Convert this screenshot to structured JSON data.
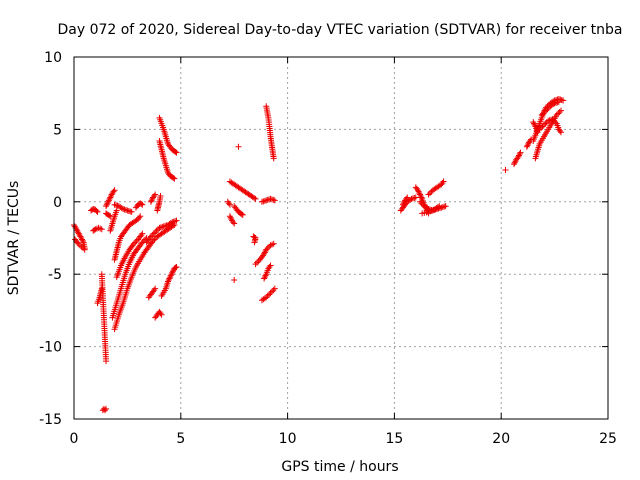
{
  "chart_data": {
    "type": "scatter",
    "title": "Day 072 of 2020, Sidereal Day-to-day VTEC variation (SDTVAR) for receiver tnba",
    "xlabel": "GPS time / hours",
    "ylabel": "SDTVAR / TECUs",
    "xlim": [
      0,
      25
    ],
    "ylim": [
      -15,
      10
    ],
    "xticks": [
      0,
      5,
      10,
      15,
      20,
      25
    ],
    "yticks": [
      -15,
      -10,
      -5,
      0,
      5,
      10
    ],
    "xtick_labels": [
      "0",
      "5",
      "10",
      "15",
      "20",
      "25"
    ],
    "ytick_labels": [
      "-15",
      "-10",
      "-5",
      "0",
      "5",
      "10"
    ],
    "grid": true,
    "marker": "plus",
    "color": "#ee0000",
    "series": [
      {
        "name": "SDTVAR",
        "segments": [
          [
            [
              0.0,
              -1.6
            ],
            [
              0.15,
              -2.0
            ],
            [
              0.3,
              -2.4
            ],
            [
              0.45,
              -2.8
            ],
            [
              0.5,
              -3.2
            ]
          ],
          [
            [
              0.05,
              -2.6
            ],
            [
              0.2,
              -2.9
            ],
            [
              0.35,
              -3.1
            ],
            [
              0.5,
              -3.3
            ]
          ],
          [
            [
              0.8,
              -0.6
            ],
            [
              0.9,
              -0.5
            ],
            [
              1.0,
              -0.55
            ],
            [
              1.1,
              -0.7
            ]
          ],
          [
            [
              0.9,
              -2.0
            ],
            [
              1.0,
              -1.9
            ],
            [
              1.15,
              -1.8
            ],
            [
              1.3,
              -1.9
            ]
          ],
          [
            [
              1.1,
              -7.0
            ],
            [
              1.2,
              -6.6
            ],
            [
              1.3,
              -6.0
            ]
          ],
          [
            [
              1.3,
              -5.0
            ],
            [
              1.35,
              -6.5
            ],
            [
              1.4,
              -8.0
            ],
            [
              1.45,
              -9.5
            ],
            [
              1.5,
              -11.0
            ]
          ],
          [
            [
              1.35,
              -14.4
            ],
            [
              1.4,
              -14.3
            ],
            [
              1.45,
              -14.4
            ],
            [
              1.5,
              -14.3
            ]
          ],
          [
            [
              1.5,
              -0.3
            ],
            [
              1.6,
              0.0
            ],
            [
              1.7,
              0.3
            ],
            [
              1.8,
              0.6
            ],
            [
              1.9,
              0.8
            ]
          ],
          [
            [
              1.5,
              -0.8
            ],
            [
              1.6,
              -0.9
            ],
            [
              1.7,
              -1.0
            ]
          ],
          [
            [
              1.7,
              -2.0
            ],
            [
              1.8,
              -1.5
            ],
            [
              1.9,
              -1.0
            ],
            [
              2.0,
              -0.6
            ]
          ],
          [
            [
              1.9,
              -0.2
            ],
            [
              2.1,
              -0.3
            ],
            [
              2.3,
              -0.5
            ],
            [
              2.5,
              -0.6
            ],
            [
              2.7,
              -0.7
            ]
          ],
          [
            [
              2.9,
              -0.4
            ],
            [
              3.0,
              -0.2
            ],
            [
              3.1,
              -0.1
            ],
            [
              3.2,
              -0.2
            ]
          ],
          [
            [
              1.9,
              -4.0
            ],
            [
              2.0,
              -3.4
            ],
            [
              2.1,
              -2.8
            ],
            [
              2.2,
              -2.4
            ],
            [
              2.4,
              -2.0
            ],
            [
              2.6,
              -1.6
            ],
            [
              2.8,
              -1.4
            ],
            [
              3.0,
              -1.2
            ],
            [
              3.1,
              -1.0
            ]
          ],
          [
            [
              1.9,
              -8.8
            ],
            [
              2.1,
              -7.8
            ],
            [
              2.3,
              -7.0
            ],
            [
              2.5,
              -6.0
            ],
            [
              2.7,
              -5.2
            ],
            [
              2.9,
              -4.5
            ],
            [
              3.1,
              -4.0
            ],
            [
              3.3,
              -3.5
            ],
            [
              3.5,
              -3.1
            ],
            [
              3.7,
              -2.7
            ],
            [
              3.9,
              -2.4
            ],
            [
              4.1,
              -2.2
            ],
            [
              4.3,
              -2.0
            ],
            [
              4.5,
              -1.8
            ],
            [
              4.7,
              -1.6
            ]
          ],
          [
            [
              1.8,
              -8.0
            ],
            [
              2.0,
              -7.0
            ],
            [
              2.2,
              -6.0
            ],
            [
              2.4,
              -5.0
            ],
            [
              2.6,
              -4.2
            ],
            [
              2.8,
              -3.6
            ],
            [
              3.0,
              -3.2
            ],
            [
              3.2,
              -2.8
            ],
            [
              3.4,
              -2.5
            ]
          ],
          [
            [
              2.0,
              -5.2
            ],
            [
              2.2,
              -4.4
            ],
            [
              2.4,
              -3.8
            ],
            [
              2.6,
              -3.3
            ],
            [
              2.8,
              -2.9
            ],
            [
              3.0,
              -2.6
            ],
            [
              3.2,
              -2.2
            ]
          ],
          [
            [
              3.4,
              -2.8
            ],
            [
              3.6,
              -2.4
            ],
            [
              3.8,
              -2.1
            ],
            [
              4.0,
              -1.8
            ],
            [
              4.2,
              -1.7
            ],
            [
              4.4,
              -1.6
            ],
            [
              4.6,
              -1.4
            ],
            [
              4.8,
              -1.3
            ]
          ],
          [
            [
              3.5,
              -6.6
            ],
            [
              3.6,
              -6.4
            ],
            [
              3.7,
              -6.2
            ],
            [
              3.8,
              -6.0
            ]
          ],
          [
            [
              3.8,
              -8.0
            ],
            [
              3.9,
              -7.8
            ],
            [
              4.0,
              -7.6
            ],
            [
              4.1,
              -7.8
            ]
          ],
          [
            [
              3.9,
              -0.6
            ],
            [
              3.95,
              -0.3
            ],
            [
              4.0,
              0.0
            ],
            [
              4.05,
              0.4
            ]
          ],
          [
            [
              3.6,
              0.0
            ],
            [
              3.7,
              0.3
            ],
            [
              3.8,
              0.5
            ]
          ],
          [
            [
              4.1,
              -6.5
            ],
            [
              4.3,
              -6.0
            ],
            [
              4.4,
              -5.5
            ],
            [
              4.5,
              -5.2
            ],
            [
              4.6,
              -4.9
            ],
            [
              4.7,
              -4.6
            ],
            [
              4.8,
              -4.5
            ]
          ],
          [
            [
              4.0,
              5.8
            ],
            [
              4.1,
              5.4
            ],
            [
              4.2,
              5.0
            ],
            [
              4.3,
              4.5
            ],
            [
              4.4,
              4.0
            ],
            [
              4.5,
              3.8
            ],
            [
              4.6,
              3.6
            ],
            [
              4.7,
              3.5
            ],
            [
              4.8,
              3.4
            ]
          ],
          [
            [
              4.0,
              4.2
            ],
            [
              4.1,
              3.6
            ],
            [
              4.2,
              3.0
            ],
            [
              4.3,
              2.5
            ],
            [
              4.4,
              2.0
            ],
            [
              4.5,
              1.8
            ],
            [
              4.6,
              1.7
            ],
            [
              4.7,
              1.6
            ]
          ],
          [
            [
              7.3,
              1.4
            ],
            [
              7.5,
              1.2
            ],
            [
              7.7,
              1.0
            ],
            [
              7.9,
              0.8
            ],
            [
              8.1,
              0.6
            ],
            [
              8.3,
              0.4
            ],
            [
              8.5,
              0.2
            ]
          ],
          [
            [
              7.3,
              -1.0
            ],
            [
              7.4,
              -1.3
            ],
            [
              7.5,
              -1.5
            ]
          ],
          [
            [
              7.5,
              -0.3
            ],
            [
              7.6,
              -0.5
            ],
            [
              7.7,
              -0.7
            ],
            [
              7.8,
              -0.8
            ],
            [
              7.9,
              -0.9
            ]
          ],
          [
            [
              7.2,
              0.0
            ],
            [
              7.3,
              -0.2
            ]
          ],
          [
            [
              7.7,
              3.8
            ]
          ],
          [
            [
              7.5,
              -5.4
            ]
          ],
          [
            [
              8.4,
              -2.4
            ],
            [
              8.5,
              -2.5
            ],
            [
              8.45,
              -2.8
            ]
          ],
          [
            [
              8.5,
              -4.3
            ],
            [
              8.7,
              -4.0
            ],
            [
              8.9,
              -3.6
            ],
            [
              9.0,
              -3.3
            ],
            [
              9.2,
              -3.0
            ],
            [
              9.35,
              -2.9
            ]
          ],
          [
            [
              8.9,
              -5.3
            ],
            [
              9.0,
              -5.0
            ],
            [
              9.1,
              -4.6
            ],
            [
              9.2,
              -4.4
            ]
          ],
          [
            [
              8.8,
              -6.8
            ],
            [
              9.0,
              -6.6
            ],
            [
              9.2,
              -6.3
            ],
            [
              9.4,
              -6.0
            ]
          ],
          [
            [
              8.8,
              0.0
            ],
            [
              9.0,
              0.1
            ],
            [
              9.2,
              0.2
            ],
            [
              9.4,
              0.1
            ]
          ],
          [
            [
              9.0,
              6.6
            ],
            [
              9.05,
              6.2
            ],
            [
              9.1,
              5.8
            ],
            [
              9.15,
              5.2
            ],
            [
              9.2,
              4.5
            ],
            [
              9.25,
              4.0
            ],
            [
              9.3,
              3.5
            ],
            [
              9.35,
              3.0
            ]
          ],
          [
            [
              15.3,
              -0.6
            ],
            [
              15.4,
              -0.4
            ],
            [
              15.5,
              -0.2
            ],
            [
              15.6,
              0.0
            ],
            [
              15.8,
              0.2
            ],
            [
              16.0,
              0.3
            ]
          ],
          [
            [
              15.4,
              -0.2
            ],
            [
              15.5,
              0.1
            ],
            [
              15.6,
              0.3
            ]
          ],
          [
            [
              16.0,
              1.0
            ],
            [
              16.1,
              0.8
            ],
            [
              16.2,
              0.5
            ],
            [
              16.3,
              0.2
            ],
            [
              16.4,
              -0.2
            ],
            [
              16.5,
              -0.5
            ],
            [
              16.6,
              -0.8
            ]
          ],
          [
            [
              16.2,
              0.0
            ],
            [
              16.4,
              -0.3
            ],
            [
              16.6,
              -0.5
            ],
            [
              16.8,
              -0.6
            ],
            [
              17.0,
              -0.5
            ],
            [
              17.2,
              -0.4
            ],
            [
              17.4,
              -0.3
            ]
          ],
          [
            [
              16.6,
              0.5
            ],
            [
              16.8,
              0.8
            ],
            [
              17.0,
              1.0
            ],
            [
              17.2,
              1.2
            ],
            [
              17.3,
              1.4
            ]
          ],
          [
            [
              16.3,
              -0.8
            ],
            [
              16.6,
              -0.7
            ],
            [
              16.9,
              -0.5
            ],
            [
              17.1,
              -0.3
            ]
          ],
          [
            [
              20.2,
              2.2
            ]
          ],
          [
            [
              20.6,
              2.6
            ],
            [
              20.7,
              2.9
            ],
            [
              20.8,
              3.1
            ],
            [
              20.9,
              3.4
            ]
          ],
          [
            [
              21.2,
              3.8
            ],
            [
              21.3,
              4.1
            ],
            [
              21.4,
              4.3
            ]
          ],
          [
            [
              21.5,
              4.2
            ],
            [
              21.6,
              4.6
            ],
            [
              21.7,
              5.0
            ],
            [
              21.8,
              5.4
            ],
            [
              21.9,
              5.8
            ],
            [
              22.0,
              6.2
            ],
            [
              22.1,
              6.5
            ],
            [
              22.3,
              6.8
            ],
            [
              22.5,
              7.0
            ],
            [
              22.7,
              7.1
            ],
            [
              22.9,
              7.0
            ]
          ],
          [
            [
              21.6,
              3.0
            ],
            [
              21.7,
              3.5
            ],
            [
              21.8,
              4.0
            ],
            [
              22.0,
              4.5
            ],
            [
              22.2,
              5.0
            ],
            [
              22.4,
              5.5
            ],
            [
              22.6,
              6.0
            ],
            [
              22.8,
              6.3
            ]
          ],
          [
            [
              21.9,
              6.0
            ],
            [
              22.1,
              6.3
            ],
            [
              22.3,
              6.6
            ],
            [
              22.5,
              6.8
            ],
            [
              22.7,
              6.9
            ]
          ],
          [
            [
              21.8,
              5.0
            ],
            [
              22.0,
              5.3
            ],
            [
              22.2,
              5.6
            ],
            [
              22.4,
              5.7
            ],
            [
              22.6,
              5.4
            ],
            [
              22.7,
              5.0
            ],
            [
              22.8,
              4.8
            ]
          ],
          [
            [
              21.5,
              5.5
            ],
            [
              21.6,
              5.2
            ],
            [
              21.7,
              4.8
            ]
          ]
        ]
      }
    ]
  }
}
